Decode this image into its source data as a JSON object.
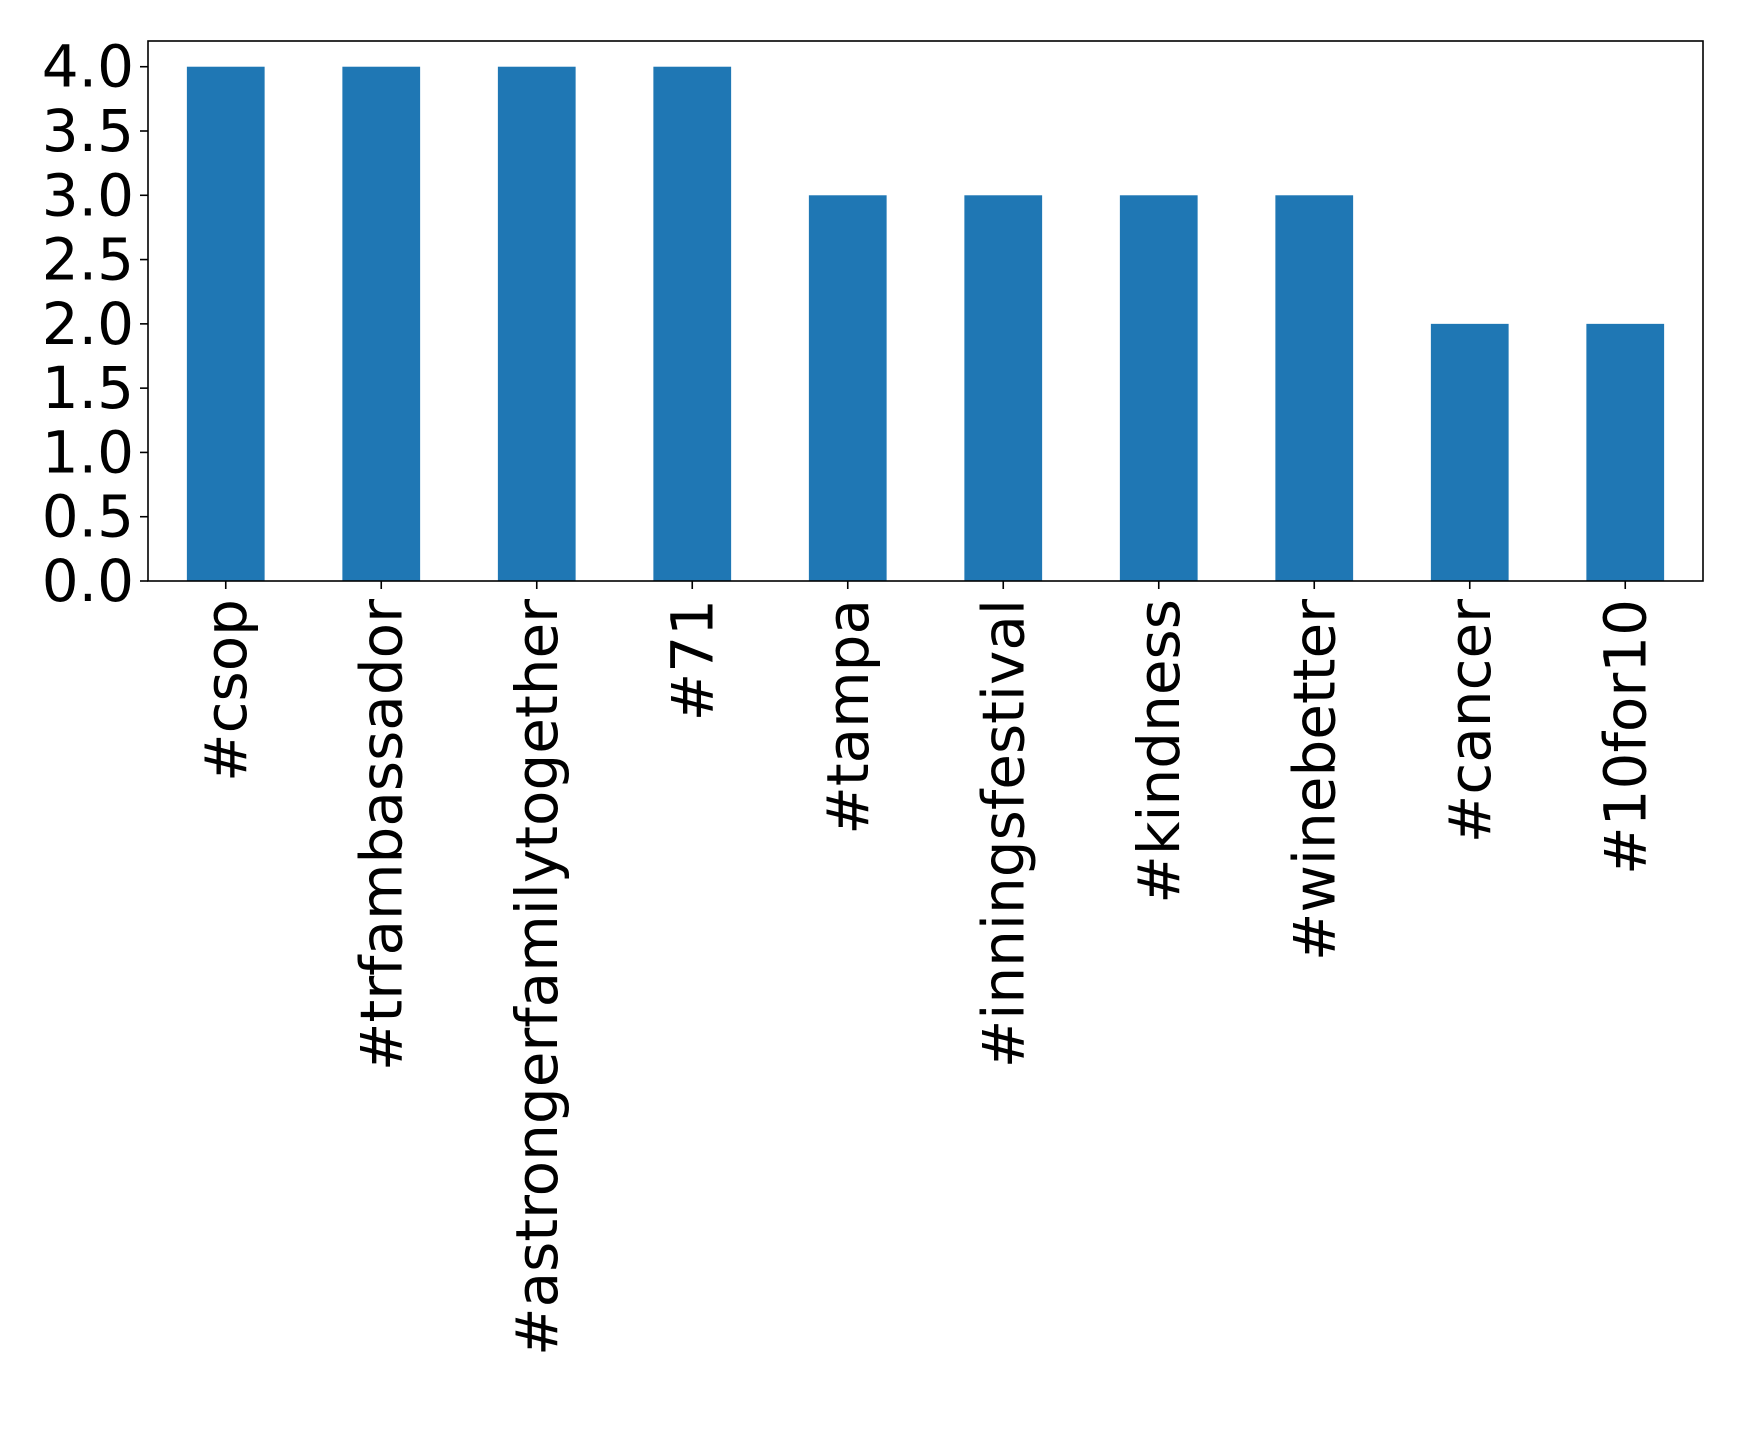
{
  "chart_data": {
    "type": "bar",
    "title": "",
    "xlabel": "",
    "ylabel": "",
    "categories": [
      "#csop",
      "#trfambassador",
      "#astrongerfamilytogether",
      "#71",
      "#tampa",
      "#inningsfestival",
      "#kindness",
      "#winebetter",
      "#cancer",
      "#10for10"
    ],
    "values": [
      4,
      4,
      4,
      4,
      3,
      3,
      3,
      3,
      2,
      2
    ],
    "ylim": [
      0,
      4.2
    ],
    "yticks": [
      "0.0",
      "0.5",
      "1.0",
      "1.5",
      "2.0",
      "2.5",
      "3.0",
      "3.5",
      "4.0"
    ],
    "grid": false,
    "legend": "none",
    "bar_color": "#1f77b4"
  }
}
